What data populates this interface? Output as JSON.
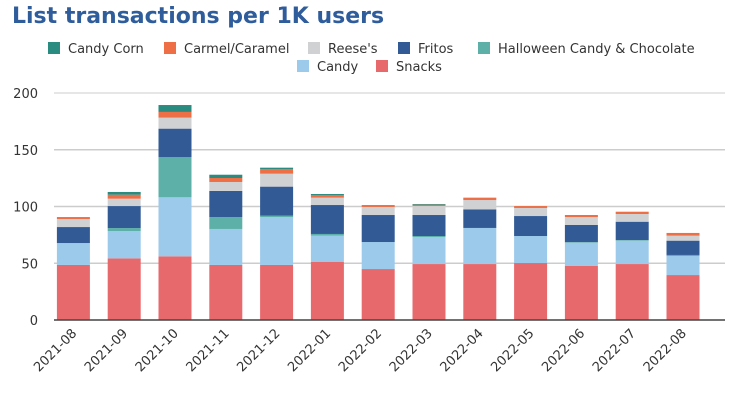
{
  "chart_data": {
    "type": "bar",
    "stacked": true,
    "title": "List transactions per 1K users",
    "xlabel": "",
    "ylabel": "",
    "ylim": [
      0,
      210
    ],
    "yticks": [
      0,
      50,
      100,
      150,
      200
    ],
    "grid": true,
    "legend_placement": "top",
    "categories": [
      "2021-08",
      "2021-09",
      "2021-10",
      "2021-11",
      "2021-12",
      "2022-01",
      "2022-02",
      "2022-03",
      "2022-04",
      "2022-05",
      "2022-06",
      "2022-07",
      "2022-08"
    ],
    "series": [
      {
        "name": "Snacks",
        "color": "#e8696b",
        "values": [
          48.5,
          54.3,
          56.1,
          48.5,
          48.5,
          51.1,
          44.9,
          49.3,
          49.3,
          50.2,
          47.6,
          49.3,
          39.6
        ]
      },
      {
        "name": "Candy",
        "color": "#9ccaeb",
        "values": [
          19.3,
          24.1,
          52.0,
          31.7,
          42.2,
          23.2,
          23.8,
          23.8,
          31.8,
          23.8,
          20.5,
          20.6,
          16.8
        ]
      },
      {
        "name": "Halloween Candy & Chocolate",
        "color": "#5cb0a8",
        "values": [
          0,
          2.6,
          35.5,
          10.5,
          1.2,
          1.5,
          0,
          0.9,
          0,
          0,
          0.5,
          0.5,
          0.9
        ]
      },
      {
        "name": "Fritos",
        "color": "#325b96",
        "values": [
          14.1,
          19.4,
          25.0,
          23.0,
          25.6,
          25.5,
          23.8,
          18.5,
          16.4,
          17.6,
          15.1,
          16.2,
          12.6
        ]
      },
      {
        "name": "Reese's",
        "color": "#d0d1d3",
        "values": [
          7.1,
          6.5,
          9.7,
          7.9,
          11.4,
          6.5,
          7.1,
          7.9,
          8.2,
          7.1,
          7.0,
          6.8,
          4.4
        ]
      },
      {
        "name": "Carmel/Caramel",
        "color": "#ee6e45",
        "values": [
          1.7,
          3.5,
          5.0,
          3.5,
          4.1,
          2.3,
          1.7,
          1.2,
          2.1,
          1.7,
          1.8,
          2.0,
          2.4
        ]
      },
      {
        "name": "Candy Corn",
        "color": "#2a8c80",
        "values": [
          0,
          2.4,
          6.1,
          2.9,
          1.2,
          0.9,
          0,
          0.6,
          0,
          0,
          0,
          0,
          0
        ]
      }
    ],
    "legend_order": [
      "Candy Corn",
      "Carmel/Caramel",
      "Reese's",
      "Fritos",
      "Halloween Candy & Chocolate",
      "Candy",
      "Snacks"
    ]
  }
}
